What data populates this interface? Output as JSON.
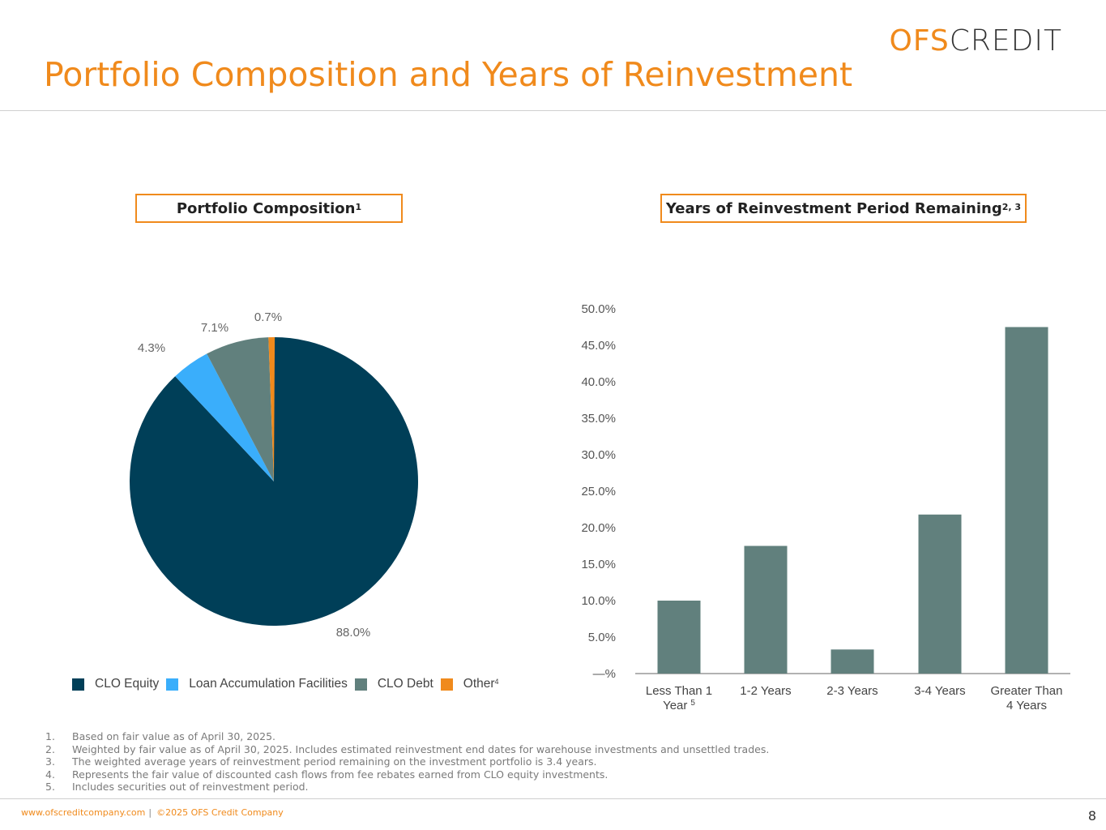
{
  "header": {
    "logo_ofs": "OFS",
    "logo_credit": "CREDIT",
    "title": "Portfolio Composition and Years of Reinvestment"
  },
  "left_panel": {
    "title": "Portfolio Composition",
    "title_sup": "1"
  },
  "right_panel": {
    "title": "Years of Reinvestment Period Remaining",
    "title_sup": "2, 3"
  },
  "chart_data": [
    {
      "type": "pie",
      "title": "Portfolio Composition",
      "slices": [
        {
          "name": "CLO Equity",
          "value": 88.0,
          "label": "88.0%",
          "color": "#003f58"
        },
        {
          "name": "Loan Accumulation Facilities",
          "value": 4.3,
          "label": "4.3%",
          "color": "#3aaefb"
        },
        {
          "name": "CLO Debt",
          "value": 7.1,
          "label": "7.1%",
          "color": "#61807d"
        },
        {
          "name": "Other",
          "value": 0.7,
          "label": "0.7%",
          "color": "#f08a1c",
          "sup": "4"
        }
      ]
    },
    {
      "type": "bar",
      "title": "Years of Reinvestment Period Remaining",
      "categories": [
        "Less Than 1 Year",
        "1-2 Years",
        "2-3 Years",
        "3-4 Years",
        "Greater Than 4 Years"
      ],
      "category_lines": [
        [
          "Less Than 1",
          "Year"
        ],
        [
          "1-2 Years"
        ],
        [
          "2-3 Years"
        ],
        [
          "3-4 Years"
        ],
        [
          "Greater Than",
          "4 Years"
        ]
      ],
      "category_sups": [
        "5",
        "",
        "",
        "",
        ""
      ],
      "values": [
        10.0,
        17.5,
        3.3,
        21.8,
        47.5
      ],
      "ylim": [
        0,
        50
      ],
      "yticks": [
        "—%",
        "5.0%",
        "10.0%",
        "15.0%",
        "20.0%",
        "25.0%",
        "30.0%",
        "35.0%",
        "40.0%",
        "45.0%",
        "50.0%"
      ],
      "bar_color": "#61807d",
      "grid": false
    }
  ],
  "footnotes": [
    {
      "num": "1.",
      "text": "Based on fair value as of April 30, 2025."
    },
    {
      "num": "2.",
      "text": "Weighted by fair value as of April 30, 2025. Includes estimated reinvestment end dates for warehouse investments and unsettled trades."
    },
    {
      "num": "3.",
      "text": "The weighted average years of reinvestment period remaining on the investment portfolio is 3.4 years."
    },
    {
      "num": "4.",
      "text": "Represents the fair value of discounted cash flows from fee rebates earned from CLO equity investments."
    },
    {
      "num": "5.",
      "text": "Includes securities out of reinvestment period."
    }
  ],
  "footer": {
    "website": "www.ofscreditcompany.com",
    "separator": "|",
    "copyright": "©2025 OFS Credit Company",
    "page": "8"
  }
}
